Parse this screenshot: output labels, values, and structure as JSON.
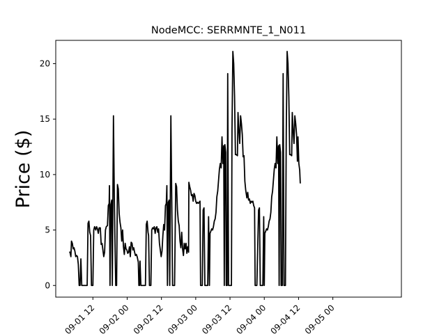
{
  "chart_data": {
    "type": "line",
    "title": "NodeMCC: SERRMNTE_1_N011",
    "xlabel": "",
    "ylabel": "Price ($)",
    "x_tick_labels": [
      "09-01 12",
      "09-02 00",
      "09-02 12",
      "09-03 00",
      "09-03 12",
      "09-04 00",
      "09-04 12",
      "09-05 00"
    ],
    "y_ticks": [
      0,
      5,
      10,
      15,
      20
    ],
    "ylim": [
      -1.05,
      22.1
    ],
    "xlim_hours": [
      -13.0,
      108.0
    ],
    "grid": false,
    "line_color": "#000000",
    "series": [
      {
        "values_hours": [
          [
            -8.3,
            3.0
          ],
          [
            -8.0,
            3.0
          ],
          [
            -7.7,
            2.6
          ],
          [
            -7.5,
            4.0
          ],
          [
            -7.2,
            3.8
          ],
          [
            -6.9,
            3.3
          ],
          [
            -6.6,
            3.4
          ],
          [
            -6.3,
            3.1
          ],
          [
            -6.0,
            2.6
          ],
          [
            -5.7,
            2.7
          ],
          [
            -5.4,
            2.6
          ],
          [
            -5.1,
            1.9
          ],
          [
            -4.8,
            0.0
          ],
          [
            -4.5,
            0.0
          ],
          [
            -4.2,
            2.4
          ],
          [
            -3.9,
            0.0
          ],
          [
            -2.0,
            0.0
          ],
          [
            -1.7,
            5.6
          ],
          [
            -1.4,
            5.8
          ],
          [
            -1.1,
            4.8
          ],
          [
            -0.8,
            4.5
          ],
          [
            -0.5,
            0.0
          ],
          [
            0.0,
            0.0
          ],
          [
            0.3,
            5.0
          ],
          [
            0.6,
            5.3
          ],
          [
            1.0,
            5.0
          ],
          [
            1.3,
            5.3
          ],
          [
            1.6,
            5.1
          ],
          [
            1.9,
            4.7
          ],
          [
            2.2,
            5.2
          ],
          [
            2.6,
            5.2
          ],
          [
            2.9,
            3.7
          ],
          [
            3.2,
            3.8
          ],
          [
            3.5,
            3.2
          ],
          [
            3.8,
            2.6
          ],
          [
            4.1,
            3.0
          ],
          [
            4.4,
            5.0
          ],
          [
            4.7,
            5.3
          ],
          [
            5.1,
            5.4
          ],
          [
            5.4,
            7.2
          ],
          [
            5.7,
            7.4
          ],
          [
            5.8,
            9.0
          ],
          [
            6.0,
            0.0
          ],
          [
            6.3,
            7.3
          ],
          [
            6.6,
            7.7
          ],
          [
            6.8,
            0.0
          ],
          [
            7.0,
            7.8
          ],
          [
            7.2,
            15.3
          ],
          [
            7.5,
            8.0
          ],
          [
            7.8,
            3.0
          ],
          [
            8.0,
            0.0
          ],
          [
            8.3,
            0.0
          ],
          [
            8.6,
            9.1
          ],
          [
            8.9,
            8.7
          ],
          [
            9.2,
            6.5
          ],
          [
            9.5,
            5.7
          ],
          [
            9.8,
            5.2
          ],
          [
            10.1,
            4.0
          ],
          [
            10.4,
            5.0
          ],
          [
            10.7,
            3.5
          ],
          [
            11.0,
            2.8
          ],
          [
            11.3,
            3.8
          ],
          [
            11.6,
            3.3
          ],
          [
            11.9,
            3.2
          ],
          [
            12.2,
            2.9
          ],
          [
            12.5,
            3.0
          ],
          [
            12.8,
            3.5
          ],
          [
            13.1,
            2.6
          ],
          [
            13.4,
            3.9
          ],
          [
            13.7,
            3.8
          ],
          [
            14.0,
            3.2
          ],
          [
            14.3,
            3.4
          ],
          [
            14.6,
            3.0
          ],
          [
            14.9,
            2.7
          ],
          [
            15.2,
            2.8
          ],
          [
            15.5,
            2.6
          ],
          [
            15.9,
            2.1
          ],
          [
            16.1,
            0.0
          ],
          [
            16.3,
            0.0
          ],
          [
            16.5,
            2.2
          ],
          [
            16.8,
            0.0
          ],
          [
            18.4,
            0.0
          ],
          [
            18.7,
            5.5
          ],
          [
            19.0,
            5.8
          ],
          [
            19.3,
            4.8
          ],
          [
            19.5,
            4.5
          ],
          [
            19.8,
            0.0
          ],
          [
            20.3,
            0.0
          ],
          [
            20.6,
            5.0
          ],
          [
            20.9,
            5.2
          ],
          [
            21.2,
            5.1
          ],
          [
            21.5,
            5.3
          ],
          [
            21.8,
            4.7
          ],
          [
            22.1,
            5.2
          ],
          [
            22.4,
            5.3
          ],
          [
            22.7,
            4.8
          ],
          [
            23.0,
            5.1
          ],
          [
            23.3,
            3.8
          ],
          [
            23.6,
            3.2
          ],
          [
            23.9,
            2.6
          ],
          [
            24.2,
            3.1
          ],
          [
            24.5,
            4.5
          ],
          [
            24.8,
            5.5
          ],
          [
            25.1,
            5.0
          ],
          [
            25.4,
            7.2
          ],
          [
            25.7,
            7.4
          ],
          [
            25.9,
            9.0
          ],
          [
            26.1,
            0.0
          ],
          [
            26.4,
            7.5
          ],
          [
            26.7,
            7.7
          ],
          [
            26.9,
            0.0
          ],
          [
            27.1,
            7.8
          ],
          [
            27.3,
            15.3
          ],
          [
            27.6,
            8.0
          ],
          [
            27.9,
            0.0
          ],
          [
            28.6,
            0.0
          ],
          [
            29.0,
            9.2
          ],
          [
            29.3,
            8.9
          ],
          [
            29.6,
            6.8
          ],
          [
            29.9,
            5.8
          ],
          [
            30.2,
            5.4
          ],
          [
            30.5,
            4.0
          ],
          [
            30.8,
            3.4
          ],
          [
            31.1,
            4.8
          ],
          [
            31.4,
            3.3
          ],
          [
            31.7,
            2.7
          ],
          [
            32.0,
            3.8
          ],
          [
            32.3,
            3.3
          ],
          [
            32.6,
            3.8
          ],
          [
            32.9,
            2.9
          ],
          [
            33.2,
            3.5
          ],
          [
            33.5,
            3.0
          ],
          [
            33.6,
            9.3
          ],
          [
            33.9,
            8.9
          ],
          [
            34.2,
            8.6
          ],
          [
            34.5,
            8.1
          ],
          [
            34.8,
            8.2
          ],
          [
            35.1,
            7.6
          ],
          [
            35.4,
            8.3
          ],
          [
            35.7,
            8.1
          ],
          [
            36.0,
            7.6
          ],
          [
            36.3,
            7.4
          ],
          [
            36.6,
            7.5
          ],
          [
            36.9,
            7.4
          ],
          [
            37.2,
            7.5
          ],
          [
            37.5,
            7.6
          ],
          [
            37.7,
            0.0
          ],
          [
            38.3,
            0.0
          ],
          [
            38.6,
            6.8
          ],
          [
            38.9,
            7.0
          ],
          [
            39.2,
            0.0
          ],
          [
            39.7,
            0.0
          ],
          [
            40.2,
            0.0
          ],
          [
            40.5,
            6.2
          ],
          [
            40.8,
            0.0
          ],
          [
            41.0,
            4.7
          ],
          [
            41.3,
            4.9
          ],
          [
            41.6,
            5.1
          ],
          [
            41.9,
            5.0
          ],
          [
            42.2,
            5.3
          ],
          [
            42.5,
            5.8
          ],
          [
            42.8,
            6.0
          ],
          [
            43.1,
            6.6
          ],
          [
            43.4,
            8.0
          ],
          [
            43.7,
            8.5
          ],
          [
            44.0,
            9.5
          ],
          [
            44.3,
            10.5
          ],
          [
            44.6,
            11.0
          ],
          [
            44.9,
            10.6
          ],
          [
            45.2,
            13.4
          ],
          [
            45.5,
            11.0
          ],
          [
            45.8,
            12.6
          ],
          [
            46.0,
            0.0
          ],
          [
            46.2,
            12.7
          ],
          [
            46.5,
            12.0
          ],
          [
            46.7,
            0.0
          ],
          [
            47.0,
            0.0
          ],
          [
            47.2,
            19.1
          ],
          [
            47.5,
            0.0
          ],
          [
            48.2,
            0.0
          ],
          [
            48.5,
            0.0
          ],
          [
            48.7,
            14.0
          ],
          [
            49.0,
            21.1
          ],
          [
            49.3,
            20.0
          ],
          [
            49.6,
            17.0
          ],
          [
            49.9,
            11.8
          ],
          [
            50.2,
            11.8
          ],
          [
            50.6,
            11.7
          ],
          [
            50.8,
            15.6
          ],
          [
            51.1,
            14.0
          ],
          [
            51.4,
            12.8
          ],
          [
            51.7,
            15.3
          ],
          [
            52.0,
            14.6
          ],
          [
            52.3,
            13.6
          ],
          [
            52.6,
            11.6
          ],
          [
            52.9,
            11.7
          ],
          [
            53.2,
            9.4
          ],
          [
            53.5,
            8.6
          ],
          [
            53.9,
            7.9
          ],
          [
            54.2,
            8.4
          ],
          [
            54.5,
            7.7
          ],
          [
            54.8,
            7.8
          ],
          [
            55.1,
            7.4
          ],
          [
            55.4,
            7.6
          ],
          [
            55.7,
            7.5
          ],
          [
            56.0,
            7.6
          ],
          [
            56.3,
            7.2
          ],
          [
            56.6,
            7.0
          ],
          [
            56.8,
            0.0
          ],
          [
            57.4,
            0.0
          ],
          [
            58.0,
            6.8
          ],
          [
            58.3,
            7.0
          ],
          [
            58.6,
            0.0
          ],
          [
            59.1,
            0.0
          ],
          [
            59.5,
            0.0
          ],
          [
            59.8,
            6.2
          ],
          [
            60.0,
            0.0
          ],
          [
            60.2,
            4.7
          ],
          [
            60.5,
            4.9
          ],
          [
            60.8,
            5.1
          ],
          [
            61.1,
            5.0
          ],
          [
            61.4,
            5.3
          ],
          [
            61.7,
            5.8
          ],
          [
            62.0,
            6.0
          ],
          [
            62.3,
            6.6
          ],
          [
            62.6,
            8.0
          ],
          [
            62.9,
            8.5
          ],
          [
            63.2,
            9.5
          ],
          [
            63.5,
            10.5
          ],
          [
            63.8,
            11.0
          ],
          [
            64.1,
            10.6
          ],
          [
            64.4,
            13.4
          ],
          [
            64.7,
            11.0
          ],
          [
            65.0,
            12.6
          ],
          [
            65.2,
            0.0
          ],
          [
            65.4,
            12.7
          ],
          [
            65.7,
            12.0
          ],
          [
            65.9,
            0.0
          ],
          [
            66.3,
            0.0
          ],
          [
            66.6,
            19.1
          ],
          [
            66.9,
            0.0
          ],
          [
            67.4,
            0.0
          ],
          [
            67.7,
            14.0
          ],
          [
            68.0,
            21.1
          ],
          [
            68.3,
            20.0
          ],
          [
            68.6,
            17.0
          ],
          [
            68.9,
            11.8
          ],
          [
            69.2,
            11.8
          ],
          [
            69.6,
            11.7
          ],
          [
            69.8,
            15.6
          ],
          [
            70.1,
            14.0
          ],
          [
            70.4,
            12.8
          ],
          [
            70.7,
            15.3
          ],
          [
            71.0,
            14.6
          ],
          [
            71.3,
            13.6
          ],
          [
            71.6,
            11.2
          ],
          [
            71.8,
            13.4
          ],
          [
            72.1,
            11.0
          ],
          [
            72.4,
            10.4
          ],
          [
            72.6,
            9.2
          ]
        ]
      }
    ]
  }
}
